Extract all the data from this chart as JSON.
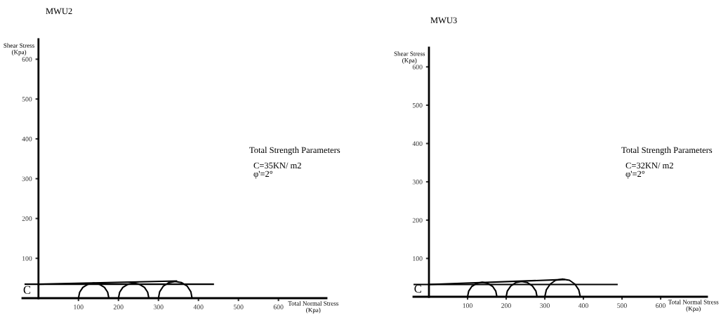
{
  "chart_data": [
    {
      "type": "line",
      "title": "MWU2",
      "xlabel": "Total Normal Stress\n(Kpa)",
      "ylabel": "Shear Stress\n(Kpa)",
      "xlim": [
        -40,
        720
      ],
      "ylim": [
        0,
        650
      ],
      "xticks": [
        100,
        200,
        300,
        400,
        500,
        600
      ],
      "yticks": [
        100,
        200,
        300,
        400,
        500,
        600
      ],
      "marker": "none",
      "line_style": "solid",
      "series": [
        {
          "color": "#000000",
          "x": [
            100,
            103,
            111,
            124,
            138,
            152,
            165,
            173,
            176
          ],
          "values": [
            0,
            15,
            27,
            35,
            38,
            35,
            27,
            15,
            0
          ]
        },
        {
          "color": "#000000",
          "x": [
            200,
            203,
            211,
            224,
            238,
            252,
            265,
            273,
            276
          ],
          "values": [
            0,
            15,
            27,
            35,
            38,
            35,
            27,
            15,
            0
          ]
        },
        {
          "color": "#000000",
          "x": [
            300,
            303,
            312,
            326,
            342,
            358,
            372,
            381,
            384
          ],
          "values": [
            0,
            16,
            30,
            39,
            42,
            39,
            30,
            16,
            0
          ]
        },
        {
          "color": "#000000",
          "x": [
            -33,
            437
          ],
          "values": [
            35,
            35
          ]
        },
        {
          "color": "#000000",
          "x": [
            0,
            345
          ],
          "values": [
            35,
            43
          ]
        }
      ],
      "annotations": [
        "C",
        "Total Strength Parameters",
        "C=35KN/ m2",
        "φ'=2°"
      ]
    },
    {
      "type": "line",
      "title": "MWU3",
      "xlabel": "Total Normal Stress\n(Kpa)",
      "ylabel": "Shear Stress\n(Kpa)",
      "xlim": [
        -40,
        720
      ],
      "ylim": [
        0,
        650
      ],
      "xticks": [
        100,
        200,
        300,
        400,
        500,
        600
      ],
      "yticks": [
        100,
        200,
        300,
        400,
        500,
        600
      ],
      "marker": "none",
      "line_style": "solid",
      "series": [
        {
          "color": "#000000",
          "x": [
            100,
            103,
            111,
            124,
            138,
            152,
            165,
            173,
            176
          ],
          "values": [
            0,
            15,
            27,
            35,
            38,
            35,
            27,
            15,
            0
          ]
        },
        {
          "color": "#000000",
          "x": [
            200,
            203,
            212,
            225,
            240,
            255,
            268,
            277,
            280
          ],
          "values": [
            0,
            15,
            28,
            37,
            40,
            37,
            28,
            15,
            0
          ]
        },
        {
          "color": "#000000",
          "x": [
            300,
            304,
            314,
            328,
            346,
            364,
            378,
            388,
            392
          ],
          "values": [
            0,
            18,
            33,
            43,
            46,
            43,
            33,
            18,
            0
          ]
        },
        {
          "color": "#000000",
          "x": [
            -38,
            487
          ],
          "values": [
            32,
            32
          ]
        },
        {
          "color": "#000000",
          "x": [
            0,
            350
          ],
          "values": [
            32,
            45
          ]
        }
      ],
      "annotations": [
        "C",
        "Total Strength Parameters",
        "C=32KN/ m2",
        "φ'=2°"
      ]
    }
  ]
}
